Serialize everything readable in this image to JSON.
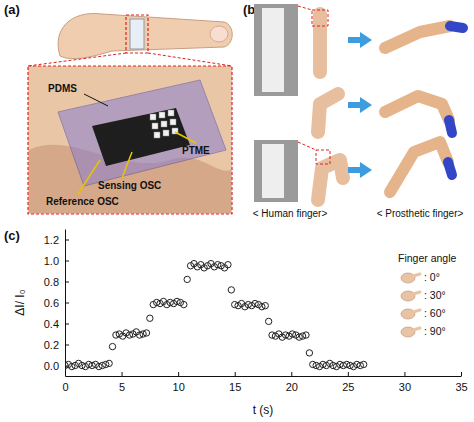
{
  "panel_labels": [
    "(a)",
    "(b)",
    "(c)"
  ],
  "panel_a": {
    "labels": [
      "PDMS",
      "PTME",
      "Sensing OSC",
      "Reference OSC"
    ]
  },
  "panel_b": {
    "captions": [
      "< Human finger>",
      "< Prosthetic finger>"
    ]
  },
  "chart_data": {
    "type": "scatter",
    "x_label": "t (s)",
    "y_label": "ΔI/ I₀",
    "legend": "upper right",
    "legend_title": "Finger angle",
    "legend_labels": [
      ": 0°",
      ": 30°",
      ": 60°",
      ": 90°"
    ],
    "marker": "circle",
    "color": "#222222",
    "xlim": [
      0,
      35
    ],
    "xticks": [
      0,
      5,
      10,
      15,
      20,
      25,
      30,
      35
    ],
    "ylim": [
      -0.1,
      1.3
    ],
    "yticks": [
      {
        "value": 0,
        "label": "0.0"
      },
      0.2,
      0.4,
      0.6,
      0.8,
      {
        "value": 1,
        "label": "1.0"
      },
      1.2
    ],
    "x": [
      0,
      0.3,
      0.6,
      0.9,
      1.2,
      1.5,
      1.8,
      2.1,
      2.4,
      2.7,
      3,
      3.3,
      3.6,
      3.9,
      4.2,
      4.5,
      4.8,
      5.1,
      5.4,
      5.7,
      6,
      6.3,
      6.6,
      6.9,
      7.2,
      7.5,
      7.8,
      8.1,
      8.4,
      8.7,
      9,
      9.3,
      9.6,
      9.9,
      10.2,
      10.5,
      10.8,
      11.1,
      11.4,
      11.7,
      12,
      12.3,
      12.6,
      12.9,
      13.2,
      13.5,
      13.8,
      14.1,
      14.4,
      14.7,
      15,
      15.3,
      15.6,
      15.9,
      16.2,
      16.5,
      16.8,
      17.1,
      17.4,
      17.7,
      18,
      18.3,
      18.6,
      18.9,
      19.2,
      19.5,
      19.8,
      20.1,
      20.4,
      20.7,
      21,
      21.3,
      21.6,
      21.9,
      22.2,
      22.5,
      22.8,
      23.1,
      23.4,
      23.7,
      24,
      24.3,
      24.6,
      24.9,
      25.2,
      25.5,
      25.8,
      26.1,
      26.4
    ],
    "values": [
      0,
      0.01,
      -0.01,
      0,
      0.02,
      0,
      -0.01,
      0.01,
      0,
      0.01,
      -0.01,
      0,
      0.01,
      0.02,
      0.18,
      0.29,
      0.3,
      0.28,
      0.31,
      0.29,
      0.3,
      0.32,
      0.29,
      0.3,
      0.31,
      0.45,
      0.58,
      0.6,
      0.59,
      0.61,
      0.58,
      0.6,
      0.59,
      0.61,
      0.6,
      0.58,
      0.82,
      0.95,
      0.97,
      0.94,
      0.96,
      0.93,
      0.95,
      0.97,
      0.94,
      0.96,
      0.95,
      0.93,
      0.96,
      0.72,
      0.58,
      0.57,
      0.59,
      0.56,
      0.58,
      0.57,
      0.59,
      0.58,
      0.56,
      0.57,
      0.42,
      0.29,
      0.28,
      0.3,
      0.27,
      0.29,
      0.28,
      0.3,
      0.29,
      0.27,
      0.28,
      0.29,
      0.12,
      0.01,
      0,
      -0.01,
      0.01,
      0,
      0.02,
      0,
      -0.01,
      0.01,
      0,
      0.01,
      0,
      -0.01,
      0.01,
      0,
      0.01
    ]
  }
}
